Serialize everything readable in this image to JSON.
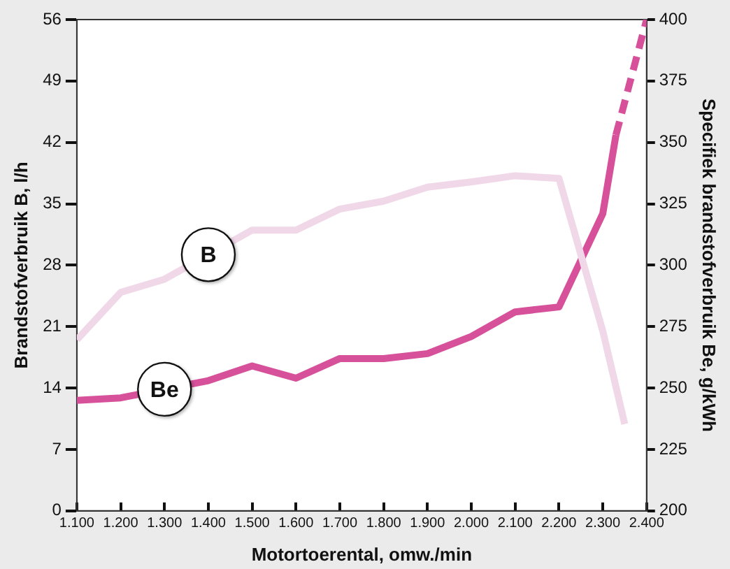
{
  "chart_data": {
    "type": "line",
    "xlabel": "Motortoerental, omw./min",
    "ylabel": "Brandstofverbruik B, l/h",
    "y2label": "Specifiek brandstofverbruik Be, g/kWh",
    "xlim": [
      1100,
      2400
    ],
    "xticks": [
      {
        "value": 1100,
        "label": "1.100"
      },
      {
        "value": 1200,
        "label": "1.200"
      },
      {
        "value": 1300,
        "label": "1.300"
      },
      {
        "value": 1400,
        "label": "1.400"
      },
      {
        "value": 1500,
        "label": "1.500"
      },
      {
        "value": 1600,
        "label": "1.600"
      },
      {
        "value": 1700,
        "label": "1.700"
      },
      {
        "value": 1800,
        "label": "1.800"
      },
      {
        "value": 1900,
        "label": "1.900"
      },
      {
        "value": 2000,
        "label": "2.000"
      },
      {
        "value": 2100,
        "label": "2.100"
      },
      {
        "value": 2200,
        "label": "2.200"
      },
      {
        "value": 2300,
        "label": "2.300"
      },
      {
        "value": 2400,
        "label": "2.400"
      }
    ],
    "ylim": [
      0,
      56
    ],
    "yticks": [
      0,
      7,
      14,
      21,
      28,
      35,
      42,
      49,
      56
    ],
    "y2lim": [
      200,
      400
    ],
    "y2ticks": [
      200,
      225,
      250,
      275,
      300,
      325,
      350,
      375,
      400
    ],
    "grid": false,
    "legend": false,
    "marker": "none",
    "series": [
      {
        "name": "B",
        "color": "#f0d8e8",
        "line_style": "solid",
        "x": [
          1100,
          1200,
          1300,
          1400,
          1500,
          1600,
          1700,
          1800,
          1900,
          2000,
          2100,
          2200,
          2300,
          2350
        ],
        "values": [
          19.5,
          24.9,
          26.4,
          null,
          32.0,
          32.0,
          34.4,
          35.3,
          36.9,
          37.5,
          38.2,
          37.9,
          20.5,
          9.9
        ]
      },
      {
        "name": "Be",
        "color": "#d6519a",
        "axis": "y2",
        "line_style": "solid",
        "x": [
          1100,
          1200,
          1300,
          1400,
          1500,
          1600,
          1700,
          1800,
          1900,
          2000,
          2100,
          2200,
          2300,
          2330
        ],
        "values": [
          245,
          246,
          null,
          253,
          259,
          254,
          262,
          262,
          264,
          271,
          281,
          283,
          321,
          353
        ]
      },
      {
        "color": "#d6519a",
        "axis": "y2",
        "line_style": "dashed",
        "x": [
          2330,
          2400
        ],
        "values": [
          353,
          400
        ]
      }
    ]
  }
}
